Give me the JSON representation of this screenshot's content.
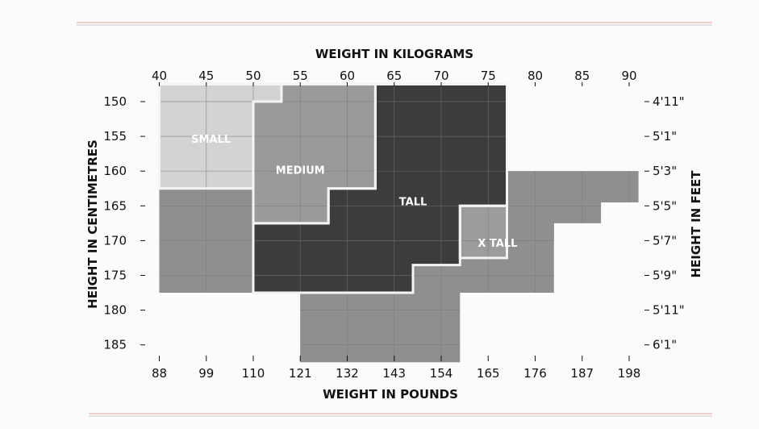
{
  "chart_data": {
    "type": "heatmap",
    "title": "",
    "x_top_label": "WEIGHT IN KILOGRAMS",
    "x_bottom_label": "WEIGHT IN POUNDS",
    "y_left_label": "HEIGHT IN CENTIMETRES",
    "y_right_label": "HEIGHT IN FEET",
    "x_top_ticks": [
      "40",
      "45",
      "50",
      "55",
      "60",
      "65",
      "70",
      "75",
      "80",
      "85",
      "90"
    ],
    "x_bottom_ticks": [
      "88",
      "99",
      "110",
      "121",
      "132",
      "143",
      "154",
      "165",
      "176",
      "187",
      "198"
    ],
    "y_left_ticks": [
      "150",
      "155",
      "160",
      "165",
      "170",
      "175",
      "180",
      "185"
    ],
    "y_right_ticks": [
      "4'11\"",
      "5'1\"",
      "5'3\"",
      "5'5\"",
      "5'7\"",
      "5'9\"",
      "5'11\"",
      "6'1\""
    ],
    "xlim_kg": [
      40,
      90
    ],
    "ylim_cm": [
      150,
      185
    ],
    "sizes": [
      {
        "name": "SMALL",
        "color": "#d3d3d3",
        "region_kg_cm": [
          [
            40,
            147.5
          ],
          [
            53,
            147.5
          ],
          [
            53,
            150
          ],
          [
            50,
            150
          ],
          [
            50,
            162.5
          ],
          [
            40,
            162.5
          ]
        ],
        "label_at": [
          45.5,
          155.5
        ]
      },
      {
        "name": "MEDIUM",
        "color": "#9a9a9a",
        "region_kg_cm": [
          [
            50,
            150
          ],
          [
            53,
            150
          ],
          [
            53,
            147.5
          ],
          [
            63,
            147.5
          ],
          [
            63,
            162.5
          ],
          [
            58,
            162.5
          ],
          [
            58,
            167.5
          ],
          [
            50,
            167.5
          ]
        ],
        "label_at": [
          55,
          160
        ]
      },
      {
        "name": "TALL",
        "color": "#3c3c3c",
        "region_kg_cm": [
          [
            63,
            147.5
          ],
          [
            77,
            147.5
          ],
          [
            77,
            165
          ],
          [
            72,
            165
          ],
          [
            72,
            173.5
          ],
          [
            67,
            173.5
          ],
          [
            67,
            177.5
          ],
          [
            50,
            177.5
          ],
          [
            50,
            167.5
          ],
          [
            58,
            167.5
          ],
          [
            58,
            162.5
          ],
          [
            63,
            162.5
          ]
        ],
        "label_at": [
          67,
          164.5
        ]
      },
      {
        "name": "X TALL",
        "color": "#9c9c9c",
        "region_kg_cm": [
          [
            72,
            165
          ],
          [
            77,
            165
          ],
          [
            77,
            172.5
          ],
          [
            72,
            172.5
          ]
        ],
        "label_at": [
          76,
          170.5
        ]
      },
      {
        "name": "",
        "color": "#8f8f8f",
        "region_kg_cm": [
          [
            40,
            162.5
          ],
          [
            50,
            162.5
          ],
          [
            50,
            177.5
          ],
          [
            40,
            177.5
          ]
        ]
      },
      {
        "name": "",
        "color": "#8f8f8f",
        "region_kg_cm": [
          [
            77,
            172.5
          ],
          [
            72,
            172.5
          ],
          [
            72,
            173.5
          ],
          [
            67,
            173.5
          ],
          [
            67,
            177.5
          ],
          [
            55,
            177.5
          ],
          [
            55,
            187.5
          ],
          [
            72,
            187.5
          ],
          [
            72,
            177.5
          ],
          [
            82,
            177.5
          ],
          [
            82,
            165
          ],
          [
            77,
            165
          ]
        ]
      },
      {
        "name": "",
        "color": "#8f8f8f",
        "region_kg_cm": [
          [
            77,
            170
          ],
          [
            77,
            160
          ],
          [
            91,
            160
          ],
          [
            91,
            164.5
          ],
          [
            87,
            164.5
          ],
          [
            87,
            167.5
          ],
          [
            82,
            167.5
          ],
          [
            82,
            170
          ]
        ]
      }
    ],
    "grid": true,
    "legend": "none"
  }
}
